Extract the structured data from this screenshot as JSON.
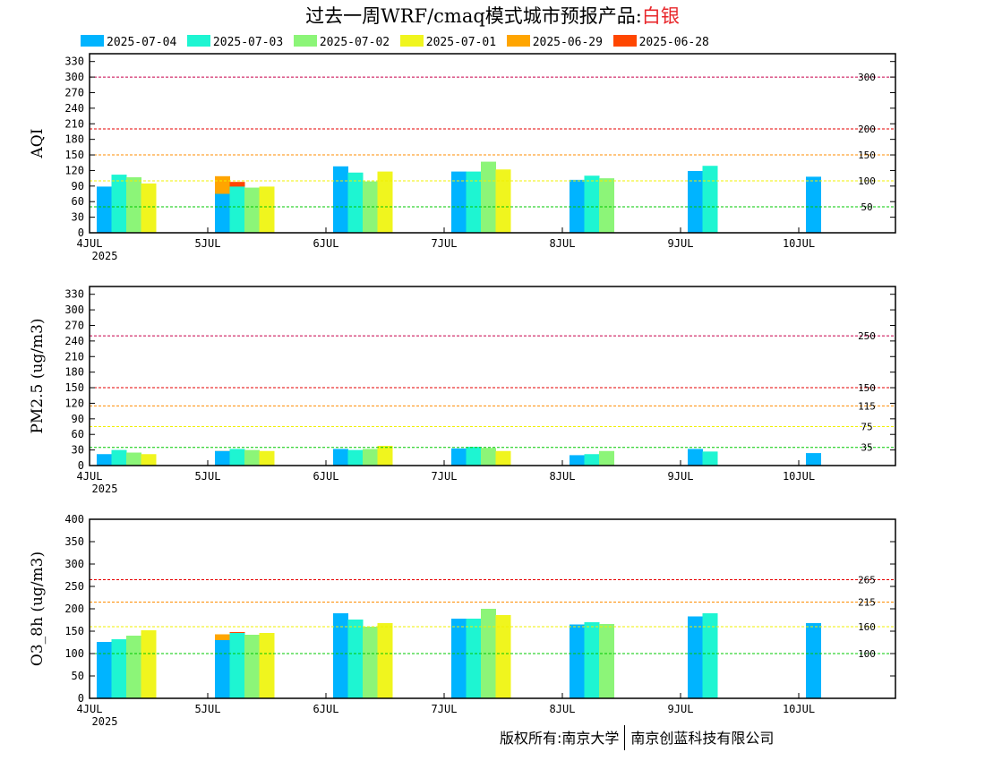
{
  "title": {
    "prefix": "过去一周WRF/cmaq模式城市预报产品:",
    "city": "白银"
  },
  "legend": [
    {
      "label": "2025-07-04",
      "color": "#00b4ff"
    },
    {
      "label": "2025-07-03",
      "color": "#1ef5d2"
    },
    {
      "label": "2025-07-02",
      "color": "#8cf578"
    },
    {
      "label": "2025-07-01",
      "color": "#f0f51e"
    },
    {
      "label": "2025-06-29",
      "color": "#ffa500"
    },
    {
      "label": "2025-06-28",
      "color": "#ff4600"
    }
  ],
  "footer": {
    "left": "版权所有:南京大学",
    "right": "南京创蓝科技有限公司"
  },
  "chart_data": [
    {
      "type": "bar",
      "ylabel": "AQI",
      "ylim": [
        0,
        345
      ],
      "yticks": [
        0,
        30,
        60,
        90,
        120,
        150,
        180,
        210,
        240,
        270,
        300,
        330
      ],
      "xticks": [
        "4JUL",
        "5JUL",
        "6JUL",
        "7JUL",
        "8JUL",
        "9JUL",
        "10JUL"
      ],
      "xyear": "2025",
      "thresholds": [
        {
          "value": 300,
          "label": "300",
          "color": "#c8004b"
        },
        {
          "value": 200,
          "label": "200",
          "color": "#e60000"
        },
        {
          "value": 150,
          "label": "150",
          "color": "#ff8c00"
        },
        {
          "value": 100,
          "label": "100",
          "color": "#f0f000"
        },
        {
          "value": 50,
          "label": "50",
          "color": "#00c800"
        }
      ],
      "groups": [
        {
          "day": 0,
          "values": [
            89,
            112,
            107,
            95,
            null,
            null
          ]
        },
        {
          "day": 1,
          "values": [
            null,
            null,
            null,
            null,
            109,
            98
          ]
        },
        {
          "day": 2,
          "values": [
            75,
            89,
            87,
            89,
            null,
            null
          ]
        },
        {
          "day": 3,
          "values": [
            null,
            null,
            null,
            null,
            97,
            null
          ]
        },
        {
          "day": 4,
          "values": [
            128,
            116,
            99,
            118,
            null,
            null
          ]
        },
        {
          "day": 6,
          "values": [
            118,
            118,
            137,
            122,
            null,
            null
          ]
        },
        {
          "day": 8,
          "values": [
            102,
            110,
            105,
            null,
            null,
            null
          ]
        },
        {
          "day": 10,
          "values": [
            119,
            129,
            null,
            null,
            null,
            null
          ]
        },
        {
          "day": 12,
          "values": [
            108,
            null,
            null,
            null,
            null,
            null
          ]
        }
      ]
    },
    {
      "type": "bar",
      "ylabel": "PM2.5 (ug/m3)",
      "ylim": [
        0,
        345
      ],
      "yticks": [
        0,
        30,
        60,
        90,
        120,
        150,
        180,
        210,
        240,
        270,
        300,
        330
      ],
      "xticks": [
        "4JUL",
        "5JUL",
        "6JUL",
        "7JUL",
        "8JUL",
        "9JUL",
        "10JUL"
      ],
      "xyear": "2025",
      "thresholds": [
        {
          "value": 250,
          "label": "250",
          "color": "#c8004b"
        },
        {
          "value": 150,
          "label": "150",
          "color": "#e60000"
        },
        {
          "value": 115,
          "label": "115",
          "color": "#ff8c00"
        },
        {
          "value": 75,
          "label": "75",
          "color": "#f0f000"
        },
        {
          "value": 35,
          "label": "35",
          "color": "#00c800"
        }
      ],
      "groups": [
        {
          "day": 0,
          "values": [
            22,
            30,
            25,
            22,
            null,
            null
          ]
        },
        {
          "day": 1,
          "values": [
            null,
            null,
            null,
            null,
            28,
            23
          ]
        },
        {
          "day": 2,
          "values": [
            28,
            32,
            30,
            28,
            null,
            null
          ]
        },
        {
          "day": 3,
          "values": [
            null,
            null,
            null,
            null,
            22,
            null
          ]
        },
        {
          "day": 4,
          "values": [
            32,
            30,
            32,
            38,
            null,
            null
          ]
        },
        {
          "day": 6,
          "values": [
            33,
            36,
            34,
            28,
            null,
            null
          ]
        },
        {
          "day": 8,
          "values": [
            20,
            22,
            28,
            null,
            null,
            null
          ]
        },
        {
          "day": 10,
          "values": [
            32,
            27,
            null,
            null,
            null,
            null
          ]
        },
        {
          "day": 12,
          "values": [
            24,
            null,
            null,
            null,
            null,
            null
          ]
        }
      ]
    },
    {
      "type": "bar",
      "ylabel": "O3_8h (ug/m3)",
      "ylim": [
        0,
        400
      ],
      "yticks": [
        0,
        50,
        100,
        150,
        200,
        250,
        300,
        350,
        400
      ],
      "xticks": [
        "4JUL",
        "5JUL",
        "6JUL",
        "7JUL",
        "8JUL",
        "9JUL",
        "10JUL"
      ],
      "xyear": "2025",
      "thresholds": [
        {
          "value": 265,
          "label": "265",
          "color": "#e60000"
        },
        {
          "value": 215,
          "label": "215",
          "color": "#ff8c00"
        },
        {
          "value": 160,
          "label": "160",
          "color": "#f0f000"
        },
        {
          "value": 100,
          "label": "100",
          "color": "#00c800"
        }
      ],
      "groups": [
        {
          "day": 0,
          "values": [
            126,
            132,
            140,
            152,
            null,
            null
          ]
        },
        {
          "day": 1,
          "values": [
            null,
            null,
            null,
            null,
            143,
            148
          ]
        },
        {
          "day": 2,
          "values": [
            130,
            146,
            142,
            146,
            null,
            null
          ]
        },
        {
          "day": 3,
          "values": [
            null,
            null,
            null,
            null,
            156,
            null
          ]
        },
        {
          "day": 4,
          "values": [
            190,
            176,
            160,
            168,
            null,
            null
          ]
        },
        {
          "day": 6,
          "values": [
            178,
            178,
            200,
            186,
            null,
            null
          ]
        },
        {
          "day": 8,
          "values": [
            165,
            170,
            166,
            null,
            null,
            null
          ]
        },
        {
          "day": 10,
          "values": [
            183,
            190,
            null,
            null,
            null,
            null
          ]
        },
        {
          "day": 12,
          "values": [
            168,
            null,
            null,
            null,
            null,
            null
          ]
        }
      ]
    }
  ]
}
